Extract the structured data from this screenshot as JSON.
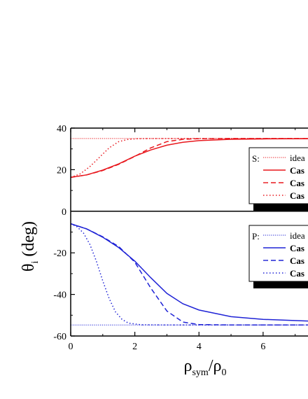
{
  "chart_data": {
    "type": "line",
    "y_axis_title": {
      "main": "θ",
      "sub": "i",
      "rest": " (deg)"
    },
    "x_axis_title": {
      "main": "ρ",
      "sub": "sym",
      "rest": "/ρ",
      "sub2": "0"
    },
    "xlim": [
      0,
      7.4
    ],
    "ylim": [
      -60,
      40
    ],
    "x_ticks": [
      "0",
      "2",
      "4",
      "6"
    ],
    "y_ticks": [
      "40",
      "20",
      "0",
      "-20",
      "-40",
      "-60"
    ],
    "grid": false,
    "panels": [
      {
        "name": "S",
        "legend": {
          "prefix": "S:",
          "entries": [
            "idea",
            "Cas",
            "Cas",
            "Cas"
          ]
        },
        "color": "#e8161c",
        "series": [
          {
            "style": "dotted-fine",
            "x": [
              0,
              2,
              4,
              6,
              7.4
            ],
            "values": [
              35,
              35,
              35,
              35,
              35
            ]
          },
          {
            "style": "solid",
            "x": [
              0,
              0.5,
              1,
              1.5,
              2,
              2.5,
              3,
              3.5,
              4,
              5,
              6,
              7.4
            ],
            "values": [
              16.3,
              17.5,
              19.8,
              22.8,
              26.5,
              29.5,
              31.8,
              33.2,
              34.0,
              34.6,
              34.8,
              34.9
            ]
          },
          {
            "style": "dashed",
            "x": [
              0,
              0.5,
              1,
              1.5,
              2,
              2.5,
              3,
              3.5,
              4,
              5,
              6,
              7.4
            ],
            "values": [
              16.3,
              17.5,
              19.6,
              22.6,
              26.4,
              30.5,
              33.5,
              34.6,
              34.9,
              35,
              35,
              35
            ]
          },
          {
            "style": "dotted",
            "x": [
              0,
              0.3,
              0.6,
              0.9,
              1.2,
              1.5,
              1.8,
              2.1,
              2.5,
              3,
              4,
              7.4
            ],
            "values": [
              16.3,
              18.0,
              21.5,
              26.0,
              30.5,
              33.5,
              34.6,
              34.9,
              35,
              35,
              35,
              35
            ]
          }
        ]
      },
      {
        "name": "P",
        "legend": {
          "prefix": "P:",
          "entries": [
            "idea",
            "Cas",
            "Cas",
            "Cas"
          ]
        },
        "color": "#1f23d6",
        "series": [
          {
            "style": "dotted-fine",
            "x": [
              0,
              2,
              4,
              6,
              7.4
            ],
            "values": [
              -54.7,
              -54.7,
              -54.7,
              -54.7,
              -54.7
            ]
          },
          {
            "style": "solid",
            "x": [
              0,
              0.5,
              1,
              1.5,
              2,
              2.5,
              3,
              3.5,
              4,
              5,
              6,
              7.4
            ],
            "values": [
              -6,
              -8.5,
              -12.5,
              -17.5,
              -24,
              -32,
              -39.5,
              -44.5,
              -47.5,
              -50.7,
              -52.0,
              -52.8
            ]
          },
          {
            "style": "dashed",
            "x": [
              0,
              0.5,
              1,
              1.5,
              2,
              2.5,
              3,
              3.5,
              4,
              5,
              6,
              7.4
            ],
            "values": [
              -6,
              -8.5,
              -12.3,
              -17.0,
              -24.5,
              -37,
              -48,
              -53.3,
              -54.5,
              -54.7,
              -54.7,
              -54.7
            ]
          },
          {
            "style": "dotted",
            "x": [
              0,
              0.2,
              0.4,
              0.6,
              0.8,
              1.0,
              1.2,
              1.4,
              1.6,
              1.8,
              2.2,
              3,
              7.4
            ],
            "values": [
              -6,
              -7.5,
              -10.5,
              -16,
              -24,
              -33.5,
              -42,
              -48.5,
              -52.0,
              -53.8,
              -54.6,
              -54.7,
              -54.7
            ]
          }
        ]
      }
    ]
  }
}
